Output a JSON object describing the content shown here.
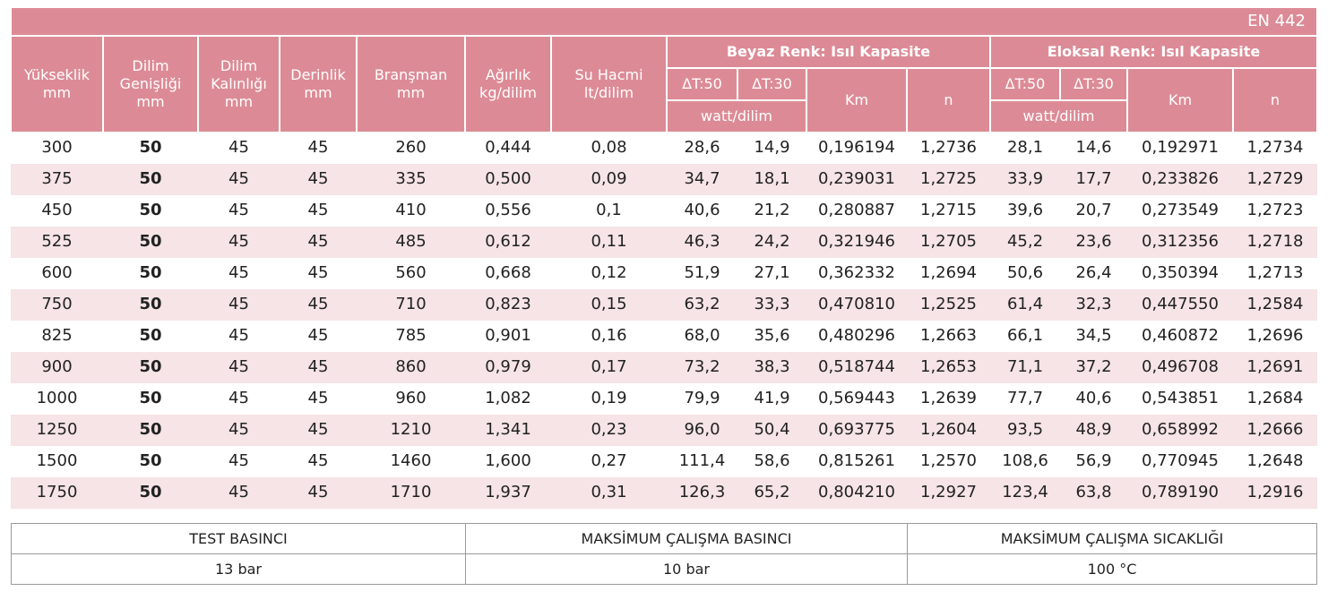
{
  "header": {
    "standard": "EN 442",
    "columns": [
      [
        "Yükseklik",
        "mm"
      ],
      [
        "Dilim",
        "Genişliği",
        "mm"
      ],
      [
        "Dilim",
        "Kalınlığı",
        "mm"
      ],
      [
        "Derinlik",
        "mm"
      ],
      [
        "Branşman",
        "mm"
      ],
      [
        "Ağırlık",
        "kg/dilim"
      ],
      [
        "Su Hacmi",
        "lt/dilim"
      ]
    ],
    "groups": [
      {
        "title": "Beyaz Renk: Isıl Kapasite",
        "dt50": "ΔT:50",
        "dt30": "ΔT:30",
        "unit": "watt/dilim",
        "km": "Km",
        "n": "n"
      },
      {
        "title": "Eloksal Renk: Isıl Kapasite",
        "dt50": "ΔT:50",
        "dt30": "ΔT:30",
        "unit": "watt/dilim",
        "km": "Km",
        "n": "n"
      }
    ]
  },
  "table": {
    "rows": [
      [
        "300",
        "50",
        "45",
        "45",
        "260",
        "0,444",
        "0,08",
        "28,6",
        "14,9",
        "0,196194",
        "1,2736",
        "28,1",
        "14,6",
        "0,192971",
        "1,2734"
      ],
      [
        "375",
        "50",
        "45",
        "45",
        "335",
        "0,500",
        "0,09",
        "34,7",
        "18,1",
        "0,239031",
        "1,2725",
        "33,9",
        "17,7",
        "0,233826",
        "1,2729"
      ],
      [
        "450",
        "50",
        "45",
        "45",
        "410",
        "0,556",
        "0,1",
        "40,6",
        "21,2",
        "0,280887",
        "1,2715",
        "39,6",
        "20,7",
        "0,273549",
        "1,2723"
      ],
      [
        "525",
        "50",
        "45",
        "45",
        "485",
        "0,612",
        "0,11",
        "46,3",
        "24,2",
        "0,321946",
        "1,2705",
        "45,2",
        "23,6",
        "0,312356",
        "1,2718"
      ],
      [
        "600",
        "50",
        "45",
        "45",
        "560",
        "0,668",
        "0,12",
        "51,9",
        "27,1",
        "0,362332",
        "1,2694",
        "50,6",
        "26,4",
        "0,350394",
        "1,2713"
      ],
      [
        "750",
        "50",
        "45",
        "45",
        "710",
        "0,823",
        "0,15",
        "63,2",
        "33,3",
        "0,470810",
        "1,2525",
        "61,4",
        "32,3",
        "0,447550",
        "1,2584"
      ],
      [
        "825",
        "50",
        "45",
        "45",
        "785",
        "0,901",
        "0,16",
        "68,0",
        "35,6",
        "0,480296",
        "1,2663",
        "66,1",
        "34,5",
        "0,460872",
        "1,2696"
      ],
      [
        "900",
        "50",
        "45",
        "45",
        "860",
        "0,979",
        "0,17",
        "73,2",
        "38,3",
        "0,518744",
        "1,2653",
        "71,1",
        "37,2",
        "0,496708",
        "1,2691"
      ],
      [
        "1000",
        "50",
        "45",
        "45",
        "960",
        "1,082",
        "0,19",
        "79,9",
        "41,9",
        "0,569443",
        "1,2639",
        "77,7",
        "40,6",
        "0,543851",
        "1,2684"
      ],
      [
        "1250",
        "50",
        "45",
        "45",
        "1210",
        "1,341",
        "0,23",
        "96,0",
        "50,4",
        "0,693775",
        "1,2604",
        "93,5",
        "48,9",
        "0,658992",
        "1,2666"
      ],
      [
        "1500",
        "50",
        "45",
        "45",
        "1460",
        "1,600",
        "0,27",
        "111,4",
        "58,6",
        "0,815261",
        "1,2570",
        "108,6",
        "56,9",
        "0,770945",
        "1,2648"
      ],
      [
        "1750",
        "50",
        "45",
        "45",
        "1710",
        "1,937",
        "0,31",
        "126,3",
        "65,2",
        "0,804210",
        "1,2927",
        "123,4",
        "63,8",
        "0,789190",
        "1,2916"
      ]
    ]
  },
  "specs": {
    "headers": [
      "TEST BASINCI",
      "MAKSİMUM ÇALIŞMA BASINCI",
      "MAKSİMUM ÇALIŞMA SICAKLIĞI"
    ],
    "values": [
      "13 bar",
      "10 bar",
      "100 °C"
    ]
  }
}
